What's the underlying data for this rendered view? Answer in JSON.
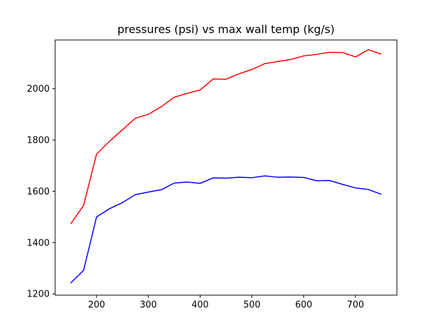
{
  "chart_data": {
    "type": "line",
    "title": "pressures (psi) vs max wall temp (kg/s)",
    "xlabel": "",
    "ylabel": "",
    "xlim": [
      120,
      780
    ],
    "ylim": [
      1195,
      2190
    ],
    "x_ticks": [
      200,
      300,
      400,
      500,
      600,
      700
    ],
    "y_ticks": [
      1200,
      1400,
      1600,
      1800,
      2000
    ],
    "grid": false,
    "x": [
      150,
      175,
      200,
      225,
      250,
      275,
      300,
      325,
      350,
      375,
      400,
      425,
      450,
      475,
      500,
      525,
      550,
      575,
      600,
      625,
      650,
      675,
      700,
      725,
      750
    ],
    "series": [
      {
        "color": "#ff0000",
        "values": [
          1473,
          1545,
          1745,
          1795,
          1840,
          1885,
          1900,
          1930,
          1967,
          1982,
          1995,
          2038,
          2037,
          2058,
          2075,
          2098,
          2106,
          2114,
          2128,
          2134,
          2142,
          2141,
          2124,
          2152,
          2135
        ]
      },
      {
        "color": "#0000ff",
        "values": [
          1242,
          1292,
          1500,
          1532,
          1556,
          1587,
          1597,
          1606,
          1632,
          1636,
          1631,
          1652,
          1651,
          1655,
          1653,
          1660,
          1655,
          1656,
          1654,
          1641,
          1642,
          1627,
          1613,
          1607,
          1588
        ]
      }
    ]
  }
}
